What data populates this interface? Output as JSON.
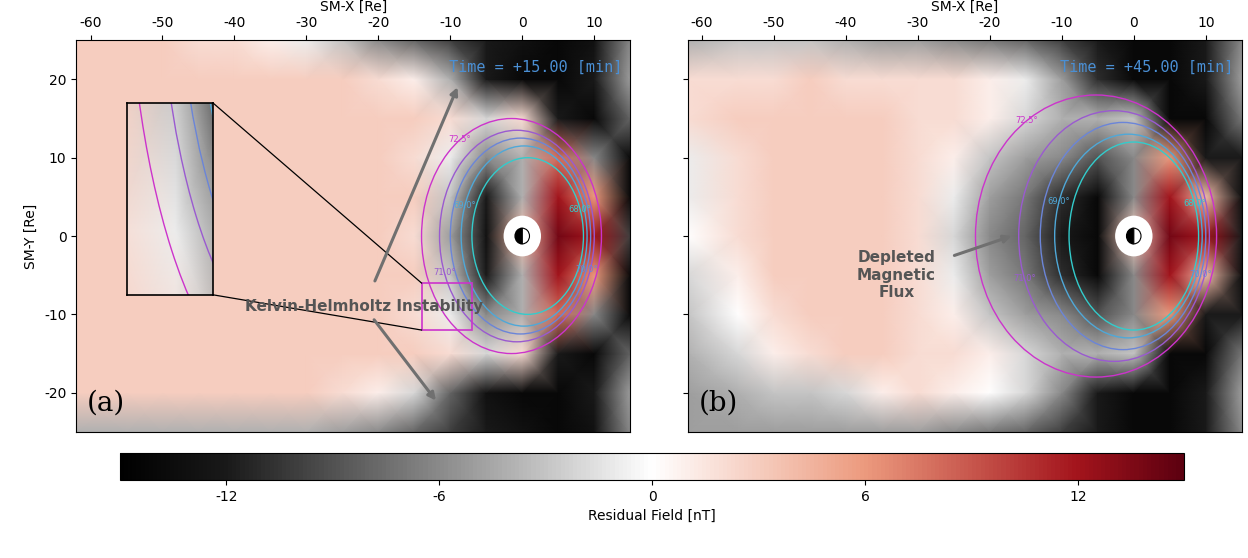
{
  "chart_data": [
    {
      "type": "heatmap",
      "xlabel": "SM-X [Re]",
      "ylabel": "SM-Y [Re]",
      "time_label": "Time = +15.00 [min]",
      "panel_label": "(a)",
      "annotations": [
        "Kelvin-Helmholtz Instability"
      ],
      "xlim": [
        -62,
        15
      ],
      "ylim": [
        -25,
        25
      ],
      "xticks": [
        -60,
        -50,
        -40,
        -30,
        -20,
        -10,
        0,
        10
      ],
      "yticks": [
        -20,
        -10,
        0,
        10,
        20
      ],
      "tick_labels": true,
      "x": [
        -62,
        -55,
        -50,
        -45,
        -40,
        -35,
        -30,
        -25,
        -20,
        -15,
        -10,
        -5,
        0,
        5,
        10,
        15
      ],
      "y": [
        -25,
        -20,
        -15,
        -10,
        -5,
        0,
        5,
        10,
        15,
        20,
        25
      ],
      "cells": [
        [
          -4,
          -4,
          -4,
          -4,
          -4,
          -4,
          -4,
          -5,
          -6,
          -8,
          -10,
          -12,
          -13,
          -14,
          -13,
          -6
        ],
        [
          3,
          3,
          3,
          3,
          3,
          3,
          3,
          2,
          1,
          -2,
          -8,
          -13,
          -14,
          -14,
          -12,
          -5
        ],
        [
          3,
          3,
          3,
          3,
          3,
          3,
          3,
          3,
          3,
          3,
          2,
          -2,
          2,
          -12,
          -14,
          -8
        ],
        [
          3,
          3,
          3,
          3,
          3,
          3,
          3,
          3,
          3,
          2,
          -1,
          -6,
          -4,
          8,
          -6,
          -14
        ],
        [
          3,
          3,
          3,
          3,
          3,
          3,
          3,
          3,
          3,
          3,
          -3,
          -12,
          -4,
          12,
          6,
          -14
        ],
        [
          3,
          3,
          3,
          3,
          3,
          3,
          3,
          3,
          3,
          2,
          -5,
          -13,
          4,
          14,
          12,
          -10
        ],
        [
          3,
          3,
          3,
          3,
          3,
          3,
          3,
          3,
          3,
          3,
          -3,
          -12,
          -4,
          12,
          6,
          -14
        ],
        [
          3,
          3,
          3,
          3,
          3,
          3,
          3,
          3,
          3,
          2,
          -1,
          -6,
          -4,
          8,
          -6,
          -14
        ],
        [
          3,
          3,
          3,
          3,
          3,
          3,
          3,
          3,
          3,
          3,
          2,
          -2,
          2,
          -12,
          -14,
          -8
        ],
        [
          3,
          3,
          3,
          3,
          3,
          3,
          3,
          3,
          2,
          1,
          -4,
          -12,
          -14,
          -14,
          -12,
          -5
        ],
        [
          3,
          3,
          3,
          2,
          2,
          1,
          -1,
          -3,
          -6,
          -8,
          -10,
          -12,
          -13,
          -14,
          -13,
          -6
        ]
      ],
      "contours": [
        {
          "label": "68.0°",
          "color": "#33cccc",
          "x_min": -7,
          "x_max": 8.5,
          "y_max": 10
        },
        {
          "label": "69.0°",
          "color": "#4fa8d8",
          "x_min": -8.5,
          "x_max": 9,
          "y_max": 11.5
        },
        {
          "label": "70.0°",
          "color": "#6b85d8",
          "x_min": -10,
          "x_max": 9.5,
          "y_max": 12.5
        },
        {
          "label": "71.0°",
          "color": "#9a5ad0",
          "x_min": -11.5,
          "x_max": 10,
          "y_max": 13.5
        },
        {
          "label": "72.5°",
          "color": "#cc33cc",
          "x_min": -14,
          "x_max": 11,
          "y_max": 15
        }
      ],
      "inset": {
        "xlim": [
          -14,
          -7
        ],
        "ylim": [
          -12,
          -6
        ]
      }
    },
    {
      "type": "heatmap",
      "xlabel": "SM-X [Re]",
      "time_label": "Time = +45.00 [min]",
      "panel_label": "(b)",
      "annotations": [
        "Depleted\nMagnetic\nFlux"
      ],
      "xlim": [
        -62,
        15
      ],
      "ylim": [
        -25,
        25
      ],
      "xticks": [
        -60,
        -50,
        -40,
        -30,
        -20,
        -10,
        0,
        10
      ],
      "yticks": [
        -20,
        -10,
        0,
        10,
        20
      ],
      "tick_labels": "x",
      "x": [
        -62,
        -55,
        -50,
        -45,
        -40,
        -35,
        -30,
        -25,
        -20,
        -15,
        -10,
        -5,
        0,
        5,
        10,
        15
      ],
      "y": [
        -25,
        -20,
        -15,
        -10,
        -5,
        0,
        5,
        10,
        15,
        20,
        25
      ],
      "cells": [
        [
          -5,
          -5,
          -5,
          -5,
          -5,
          -5,
          -5,
          -6,
          -7,
          -8,
          -10,
          -12,
          -14,
          -14,
          -12,
          -6
        ],
        [
          -5,
          -4,
          -3,
          -3,
          -2,
          1,
          2,
          1,
          0,
          -2,
          -6,
          -12,
          -14,
          -14,
          -12,
          -5
        ],
        [
          -4,
          -2,
          1,
          2,
          3,
          3,
          2,
          2,
          1,
          -2,
          -4,
          -4,
          -3,
          -14,
          -14,
          -7
        ],
        [
          -3,
          0,
          2,
          3,
          3,
          3,
          2,
          1,
          -3,
          -5,
          -6,
          -9,
          -6,
          6,
          -12,
          -12
        ],
        [
          -2,
          1,
          3,
          3,
          3,
          3,
          2,
          -1,
          -5,
          -7,
          -11,
          -14,
          -6,
          12,
          4,
          -13
        ],
        [
          0,
          2,
          3,
          3,
          3,
          3,
          2,
          -2,
          -6,
          -8,
          -12,
          -14,
          3,
          14,
          12,
          -12
        ],
        [
          -1,
          2,
          3,
          3,
          3,
          3,
          2,
          -1,
          -5,
          -7,
          -11,
          -14,
          -6,
          12,
          4,
          -13
        ],
        [
          -1,
          2,
          3,
          3,
          3,
          3,
          2,
          1,
          -3,
          -5,
          -6,
          -9,
          -6,
          6,
          -12,
          -12
        ],
        [
          2,
          3,
          3,
          3,
          3,
          3,
          2,
          2,
          1,
          -2,
          -4,
          -4,
          -3,
          -14,
          -14,
          -7
        ],
        [
          2,
          2,
          2,
          3,
          2,
          2,
          2,
          2,
          1,
          -1,
          -5,
          -11,
          -14,
          -14,
          -12,
          -5
        ],
        [
          -4,
          -3,
          -3,
          -3,
          -4,
          -5,
          -5,
          -6,
          -7,
          -8,
          -10,
          -12,
          -14,
          -14,
          -12,
          -6
        ]
      ],
      "contours": [
        {
          "label": "68.0°",
          "color": "#33cccc",
          "x_min": -9,
          "x_max": 9,
          "y_max": 12
        },
        {
          "label": "69.0°",
          "color": "#4fa8d8",
          "x_min": -11,
          "x_max": 9.5,
          "y_max": 13
        },
        {
          "label": "70.0°",
          "color": "#6b85d8",
          "x_min": -13,
          "x_max": 10,
          "y_max": 14.5
        },
        {
          "label": "71.0°",
          "color": "#9a5ad0",
          "x_min": -16,
          "x_max": 10.5,
          "y_max": 16
        },
        {
          "label": "72.5°",
          "color": "#cc33cc",
          "x_min": -22,
          "x_max": 11.5,
          "y_max": 18
        }
      ]
    }
  ],
  "colorbar": {
    "label": "Residual Field [nT]",
    "range": [
      -15,
      15
    ],
    "ticks": [
      -12,
      -6,
      0,
      6,
      12
    ]
  }
}
